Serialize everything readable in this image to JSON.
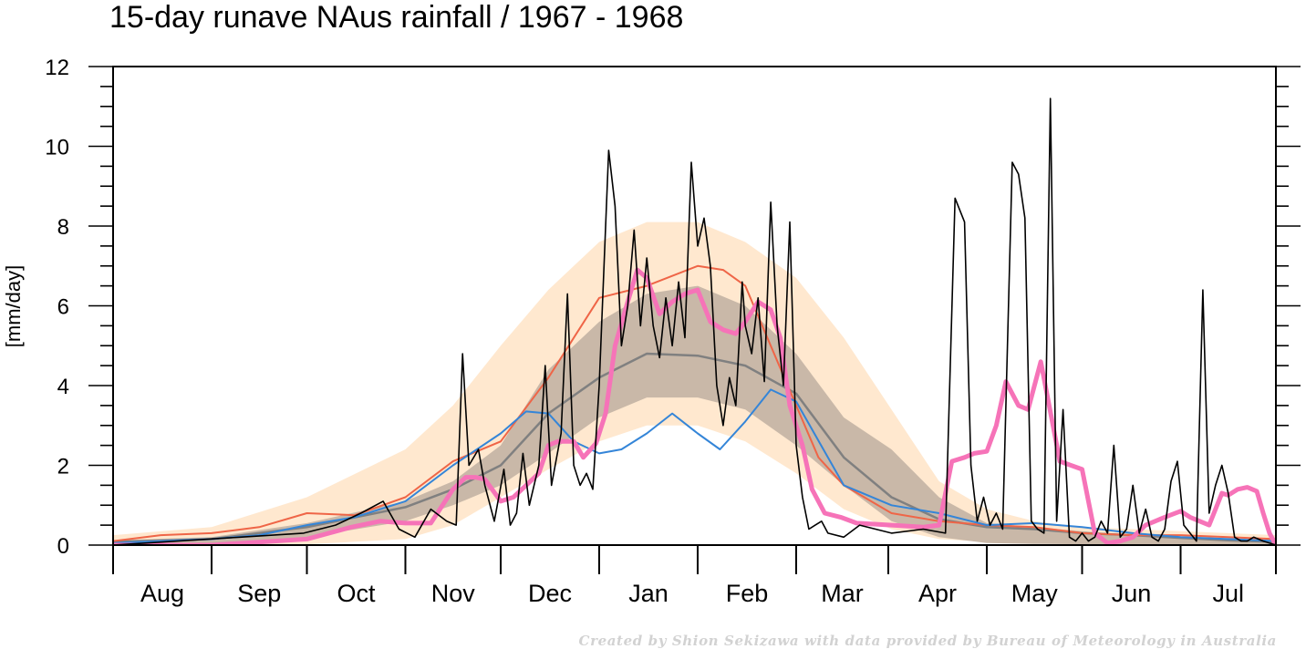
{
  "chart_data": {
    "type": "line",
    "title": "15-day runave NAus rainfall  /  1967 - 1968",
    "ylabel": "[mm/day]",
    "xlabel": "",
    "ylim": [
      0,
      12
    ],
    "yticks": [
      0,
      2,
      4,
      6,
      8,
      10,
      12
    ],
    "xlim_days": [
      0,
      366
    ],
    "month_labels": [
      "Aug",
      "Sep",
      "Oct",
      "Nov",
      "Dec",
      "Jan",
      "Feb",
      "Mar",
      "Apr",
      "May",
      "Jun",
      "Jul"
    ],
    "grid": false,
    "legend": "none",
    "credit": "Created by Shion Sekizawa with data provided by Bureau of Meteorology in Australia",
    "colors": {
      "outer_band": "#ffe8cf",
      "inner_band": "#c9b8a8",
      "climatology": "#808080",
      "red_line": "#ef6547",
      "blue_line": "#3485d8",
      "daily": "#000000",
      "runave": "#f673b8"
    },
    "bands": [
      {
        "role": "outer",
        "x": [
          0,
          31,
          61,
          92,
          107,
          122,
          137,
          153,
          168,
          184,
          199,
          215,
          230,
          245,
          260,
          275,
          290,
          305,
          321,
          336,
          351,
          366
        ],
        "lower": [
          0,
          0,
          0.02,
          0.15,
          0.5,
          1.2,
          1.9,
          2.6,
          3.0,
          3.0,
          2.6,
          1.8,
          0.9,
          0.4,
          0.15,
          0.08,
          0.05,
          0.03,
          0.02,
          0.01,
          0,
          0
        ],
        "upper": [
          0.25,
          0.45,
          1.2,
          2.4,
          3.5,
          5.0,
          6.4,
          7.6,
          8.1,
          8.1,
          7.6,
          6.7,
          5.2,
          3.4,
          1.6,
          0.9,
          0.6,
          0.45,
          0.4,
          0.35,
          0.3,
          0.25
        ]
      },
      {
        "role": "inner",
        "x": [
          0,
          31,
          61,
          92,
          107,
          122,
          137,
          153,
          168,
          184,
          199,
          215,
          230,
          245,
          260,
          275,
          290,
          305,
          321,
          336,
          351,
          366
        ],
        "lower": [
          0.02,
          0.05,
          0.2,
          0.6,
          1.0,
          1.5,
          2.3,
          3.2,
          3.7,
          3.7,
          3.4,
          2.5,
          1.5,
          0.6,
          0.2,
          0.05,
          0.03,
          0.02,
          0.02,
          0.02,
          0.02,
          0.02
        ],
        "upper": [
          0.12,
          0.2,
          0.55,
          1.1,
          1.6,
          2.5,
          4.4,
          5.6,
          6.3,
          6.5,
          6.0,
          4.8,
          3.2,
          2.4,
          1.2,
          0.55,
          0.45,
          0.35,
          0.25,
          0.2,
          0.15,
          0.12
        ]
      }
    ],
    "series": [
      {
        "role": "climatology",
        "x": [
          0,
          31,
          61,
          92,
          107,
          122,
          137,
          153,
          168,
          184,
          199,
          215,
          230,
          245,
          260,
          275,
          290,
          305,
          321,
          336,
          351,
          366
        ],
        "values": [
          0.08,
          0.15,
          0.45,
          0.95,
          1.4,
          2.0,
          3.3,
          4.2,
          4.8,
          4.75,
          4.5,
          3.8,
          2.2,
          1.2,
          0.65,
          0.45,
          0.4,
          0.3,
          0.25,
          0.18,
          0.12,
          0.08
        ]
      },
      {
        "role": "red",
        "x": [
          0,
          15,
          31,
          46,
          61,
          76,
          92,
          107,
          122,
          137,
          153,
          168,
          184,
          192,
          199,
          207,
          215,
          222,
          230,
          245,
          260,
          275,
          290,
          305,
          321,
          336,
          351,
          366
        ],
        "values": [
          0.1,
          0.25,
          0.3,
          0.45,
          0.8,
          0.75,
          1.2,
          2.1,
          2.6,
          4.2,
          6.2,
          6.5,
          7.0,
          6.9,
          6.5,
          5.0,
          3.5,
          2.2,
          1.5,
          0.8,
          0.6,
          0.5,
          0.45,
          0.3,
          0.25,
          0.25,
          0.2,
          0.15
        ]
      },
      {
        "role": "blue",
        "x": [
          0,
          15,
          31,
          46,
          61,
          76,
          92,
          107,
          122,
          130,
          137,
          145,
          153,
          160,
          168,
          176,
          184,
          191,
          199,
          207,
          215,
          230,
          245,
          260,
          275,
          290,
          305,
          321,
          336,
          351,
          366
        ],
        "values": [
          0.05,
          0.1,
          0.15,
          0.25,
          0.5,
          0.7,
          1.1,
          2.0,
          2.8,
          3.35,
          3.3,
          2.6,
          2.3,
          2.4,
          2.8,
          3.3,
          2.8,
          2.4,
          3.1,
          3.9,
          3.6,
          1.5,
          1.0,
          0.8,
          0.5,
          0.55,
          0.45,
          0.3,
          0.2,
          0.15,
          0.1
        ]
      },
      {
        "role": "runave",
        "x": [
          0,
          31,
          61,
          75,
          84,
          92,
          100,
          107,
          111,
          114,
          117,
          122,
          126,
          130,
          134,
          137,
          140,
          145,
          148,
          152,
          155,
          158,
          162,
          165,
          168,
          172,
          176,
          180,
          184,
          188,
          192,
          196,
          199,
          203,
          207,
          210,
          213,
          217,
          220,
          224,
          229,
          234,
          245,
          255,
          260,
          264,
          268,
          271,
          275,
          278,
          281,
          285,
          288,
          292,
          298,
          305,
          309,
          313,
          317,
          321,
          325,
          328,
          331,
          336,
          339,
          342,
          345,
          349,
          351,
          354,
          357,
          360,
          362,
          364,
          366
        ],
        "values": [
          0,
          0,
          0.15,
          0.45,
          0.6,
          0.55,
          0.55,
          1.4,
          1.7,
          1.7,
          1.65,
          1.1,
          1.2,
          1.5,
          1.8,
          2.5,
          2.6,
          2.6,
          2.2,
          2.55,
          3.3,
          5.0,
          6.1,
          6.9,
          6.7,
          5.8,
          6.1,
          6.3,
          6.4,
          5.6,
          5.4,
          5.3,
          5.6,
          6.1,
          5.9,
          5.2,
          3.5,
          2.5,
          1.4,
          0.8,
          0.7,
          0.55,
          0.5,
          0.45,
          0.5,
          2.1,
          2.2,
          2.3,
          2.35,
          3.0,
          4.1,
          3.5,
          3.4,
          4.6,
          2.1,
          1.9,
          0.3,
          0.05,
          0.1,
          0.2,
          0.5,
          0.6,
          0.7,
          0.85,
          0.7,
          0.6,
          0.5,
          1.3,
          1.25,
          1.4,
          1.45,
          1.35,
          0.8,
          0.3,
          0
        ]
      },
      {
        "role": "daily",
        "x": [
          0,
          40,
          60,
          70,
          78,
          85,
          90,
          95,
          100,
          105,
          108,
          110,
          112,
          115,
          117,
          120,
          123,
          125,
          127,
          129,
          131,
          134,
          136,
          138,
          141,
          143,
          145,
          147,
          149,
          151,
          153,
          156,
          158,
          160,
          162,
          164,
          166,
          168,
          170,
          172,
          174,
          176,
          178,
          180,
          182,
          184,
          186,
          188,
          190,
          192,
          194,
          196,
          198,
          199,
          201,
          203,
          205,
          207,
          209,
          211,
          213,
          215,
          217,
          219,
          221,
          223,
          225,
          230,
          235,
          245,
          255,
          262,
          265,
          268,
          270,
          272,
          274,
          276,
          278,
          280,
          283,
          285,
          287,
          289,
          291,
          293,
          295,
          297,
          299,
          301,
          303,
          305,
          307,
          309,
          311,
          313,
          315,
          317,
          319,
          321,
          323,
          325,
          327,
          329,
          331,
          333,
          335,
          337,
          339,
          341,
          343,
          345,
          347,
          349,
          351,
          353,
          355,
          357,
          359,
          362,
          366
        ],
        "values": [
          0,
          0.2,
          0.3,
          0.5,
          0.8,
          1.1,
          0.4,
          0.2,
          0.9,
          0.6,
          0.5,
          4.8,
          2.0,
          2.4,
          1.5,
          0.6,
          1.9,
          0.5,
          0.8,
          2.3,
          1.0,
          2.0,
          4.5,
          1.5,
          2.8,
          6.3,
          2.0,
          1.5,
          1.8,
          1.4,
          4.0,
          9.9,
          8.5,
          5.0,
          6.0,
          7.9,
          5.5,
          7.2,
          5.5,
          4.7,
          6.2,
          5.0,
          6.6,
          5.2,
          9.6,
          7.5,
          8.2,
          7.0,
          4.0,
          3.0,
          4.2,
          3.5,
          6.6,
          5.5,
          4.8,
          6.2,
          4.1,
          8.6,
          5.5,
          4.0,
          8.1,
          2.5,
          1.2,
          0.4,
          0.5,
          0.6,
          0.3,
          0.2,
          0.5,
          0.3,
          0.4,
          0.3,
          8.7,
          8.1,
          2.0,
          0.6,
          1.2,
          0.5,
          0.8,
          0.4,
          9.6,
          9.3,
          8.2,
          0.6,
          0.4,
          0.3,
          11.2,
          0.6,
          3.4,
          0.2,
          0.1,
          0.3,
          0.1,
          0.2,
          0.6,
          0.3,
          2.5,
          0.2,
          0.4,
          1.5,
          0.3,
          0.9,
          0.2,
          0.1,
          0.4,
          1.6,
          2.1,
          0.5,
          0.3,
          0.1,
          6.4,
          0.8,
          1.5,
          2.0,
          1.3,
          0.2,
          0.1,
          0.1,
          0.2,
          0.1,
          0
        ]
      }
    ]
  }
}
